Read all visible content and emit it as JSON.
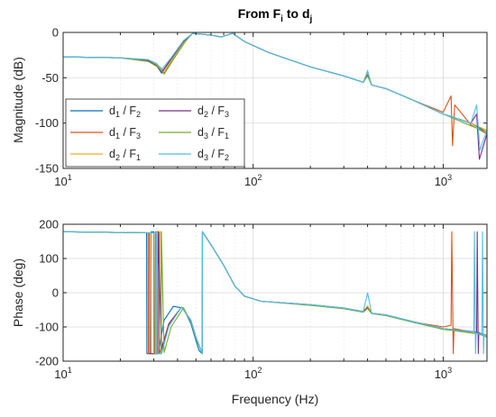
{
  "chart_data": [
    {
      "type": "line",
      "title_main": "From F",
      "title_sub1": "i",
      "title_mid": " to d",
      "title_sub2": "j",
      "ylabel": "Magnitude (dB)",
      "xscale": "log",
      "xlim": [
        10,
        1700
      ],
      "ylim": [
        -150,
        0
      ],
      "x_ticks": [
        10,
        100,
        1000
      ],
      "x_tick_labels": [
        {
          "base": "10",
          "exp": "1"
        },
        {
          "base": "10",
          "exp": "2"
        },
        {
          "base": "10",
          "exp": "3"
        }
      ],
      "y_ticks": [
        0,
        -50,
        -100,
        -150
      ],
      "y_tick_labels": [
        "0",
        "-50",
        "-100",
        "-150"
      ],
      "grid": true,
      "legend_placement": "lower-left",
      "legend": [
        {
          "num": "d",
          "num_sub": "1",
          "den": "F",
          "den_sub": "2",
          "color": "#0072BD"
        },
        {
          "num": "d",
          "num_sub": "2",
          "den": "F",
          "den_sub": "3",
          "color": "#7E2F8E"
        },
        {
          "num": "d",
          "num_sub": "1",
          "den": "F",
          "den_sub": "3",
          "color": "#D95319"
        },
        {
          "num": "d",
          "num_sub": "3",
          "den": "F",
          "den_sub": "1",
          "color": "#77AC30"
        },
        {
          "num": "d",
          "num_sub": "2",
          "den": "F",
          "den_sub": "1",
          "color": "#EDB120"
        },
        {
          "num": "d",
          "num_sub": "3",
          "den": "F",
          "den_sub": "2",
          "color": "#4DBEEE"
        }
      ],
      "series": [
        {
          "color": "#0072BD",
          "x": [
            10,
            20,
            28,
            31,
            33,
            37,
            43,
            48,
            60,
            68,
            78,
            90,
            120,
            200,
            300,
            380,
            400,
            420,
            500,
            700,
            1000,
            1400,
            1700
          ],
          "y": [
            -27,
            -28,
            -31,
            -36,
            -45,
            -30,
            -10,
            -1,
            -3,
            -5,
            -1,
            -10,
            -22,
            -38,
            -48,
            -55,
            -44,
            -58,
            -62,
            -75,
            -90,
            -100,
            -110
          ]
        },
        {
          "color": "#D95319",
          "x": [
            10,
            20,
            28,
            32,
            34,
            38,
            44,
            48,
            60,
            68,
            78,
            90,
            120,
            200,
            300,
            380,
            400,
            420,
            500,
            700,
            1000,
            1100,
            1120,
            1150,
            1400,
            1700
          ],
          "y": [
            -27,
            -28,
            -32,
            -38,
            -45,
            -29,
            -9,
            -1,
            -3,
            -5,
            -1,
            -10,
            -22,
            -38,
            -48,
            -55,
            -46,
            -58,
            -62,
            -75,
            -88,
            -70,
            -125,
            -80,
            -102,
            -112
          ]
        },
        {
          "color": "#EDB120",
          "x": [
            10,
            20,
            28,
            31,
            34,
            38,
            44,
            48,
            60,
            68,
            78,
            90,
            120,
            200,
            300,
            380,
            400,
            420,
            500,
            700,
            1000,
            1400,
            1700
          ],
          "y": [
            -27,
            -28,
            -30,
            -35,
            -42,
            -28,
            -9,
            -1,
            -3,
            -5,
            -1,
            -10,
            -22,
            -38,
            -48,
            -55,
            -45,
            -58,
            -62,
            -75,
            -90,
            -100,
            -108
          ]
        },
        {
          "color": "#7E2F8E",
          "x": [
            10,
            20,
            28,
            31,
            33,
            37,
            43,
            48,
            60,
            68,
            78,
            90,
            120,
            200,
            300,
            380,
            400,
            420,
            500,
            700,
            1000,
            1400,
            1500,
            1550,
            1700
          ],
          "y": [
            -27,
            -28,
            -31,
            -37,
            -44,
            -29,
            -10,
            -1,
            -3,
            -5,
            -1,
            -10,
            -22,
            -38,
            -48,
            -55,
            -47,
            -58,
            -62,
            -75,
            -90,
            -100,
            -90,
            -140,
            -112
          ]
        },
        {
          "color": "#77AC30",
          "x": [
            10,
            20,
            28,
            32,
            34,
            38,
            44,
            48,
            60,
            68,
            78,
            90,
            120,
            200,
            300,
            380,
            400,
            420,
            500,
            700,
            1000,
            1400,
            1700
          ],
          "y": [
            -27,
            -28,
            -32,
            -39,
            -46,
            -30,
            -10,
            -1,
            -3,
            -5,
            -1,
            -10,
            -22,
            -38,
            -48,
            -55,
            -48,
            -58,
            -62,
            -75,
            -90,
            -103,
            -110
          ]
        },
        {
          "color": "#4DBEEE",
          "x": [
            10,
            20,
            28,
            31,
            33,
            37,
            43,
            48,
            60,
            68,
            78,
            90,
            120,
            200,
            300,
            380,
            400,
            420,
            500,
            700,
            1000,
            1400,
            1500,
            1560,
            1700
          ],
          "y": [
            -27,
            -28,
            -30,
            -34,
            -41,
            -28,
            -9,
            -1,
            -3,
            -5,
            -1,
            -10,
            -22,
            -38,
            -48,
            -55,
            -42,
            -58,
            -62,
            -75,
            -90,
            -100,
            -80,
            -130,
            -108
          ]
        }
      ]
    },
    {
      "type": "line",
      "xlabel": "Frequency (Hz)",
      "ylabel": "Phase (deg)",
      "xscale": "log",
      "xlim": [
        10,
        1700
      ],
      "ylim": [
        -200,
        200
      ],
      "x_ticks": [
        10,
        100,
        1000
      ],
      "x_tick_labels": [
        {
          "base": "10",
          "exp": "1"
        },
        {
          "base": "10",
          "exp": "2"
        },
        {
          "base": "10",
          "exp": "3"
        }
      ],
      "y_ticks": [
        200,
        100,
        0,
        -100,
        -200
      ],
      "y_tick_labels": [
        "200",
        "100",
        "0",
        "-100",
        "-200"
      ],
      "grid": true,
      "series": [
        {
          "color": "#0072BD",
          "x": [
            10,
            20,
            27.5,
            27.6,
            29,
            29.1,
            30,
            30.1,
            32,
            32.1,
            34,
            38,
            43,
            47,
            50,
            52,
            54,
            54.1,
            60,
            70,
            80,
            90,
            110,
            200,
            300,
            380,
            400,
            420,
            500,
            700,
            1000,
            1500,
            1700
          ],
          "y": [
            178,
            176,
            175,
            -178,
            -178,
            178,
            178,
            -178,
            -178,
            -160,
            -80,
            -40,
            -45,
            -90,
            -140,
            -170,
            -178,
            178,
            140,
            80,
            20,
            -10,
            -25,
            -35,
            -45,
            -55,
            -40,
            -60,
            -65,
            -85,
            -105,
            -115,
            -125
          ]
        },
        {
          "color": "#D95319",
          "x": [
            10,
            20,
            28,
            28.1,
            30.5,
            30.6,
            32,
            32.1,
            33,
            36,
            42,
            47,
            50,
            54,
            54.1,
            60,
            70,
            80,
            90,
            110,
            200,
            300,
            380,
            400,
            420,
            500,
            700,
            1000,
            1100,
            1110,
            1130,
            1140,
            1500,
            1700
          ],
          "y": [
            178,
            176,
            175,
            -178,
            -178,
            178,
            178,
            -178,
            -160,
            -90,
            -42,
            -80,
            -130,
            -178,
            178,
            140,
            80,
            20,
            -10,
            -25,
            -36,
            -46,
            -56,
            -42,
            -60,
            -66,
            -86,
            -100,
            -95,
            178,
            -178,
            -105,
            -118,
            -128
          ]
        },
        {
          "color": "#EDB120",
          "x": [
            10,
            20,
            29,
            29.1,
            31,
            31.1,
            32.5,
            33,
            36,
            42,
            47,
            50,
            54,
            54.1,
            60,
            70,
            80,
            90,
            110,
            200,
            300,
            380,
            400,
            420,
            500,
            700,
            1000,
            1500,
            1700
          ],
          "y": [
            178,
            176,
            175,
            -178,
            -178,
            178,
            178,
            -170,
            -95,
            -42,
            -82,
            -132,
            -178,
            178,
            140,
            80,
            20,
            -10,
            -25,
            -35,
            -45,
            -55,
            -38,
            -60,
            -65,
            -85,
            -105,
            -118,
            -126
          ]
        },
        {
          "color": "#7E2F8E",
          "x": [
            10,
            20,
            28.5,
            28.6,
            31.5,
            31.6,
            33,
            36,
            42,
            47,
            50,
            54,
            54.1,
            60,
            70,
            80,
            90,
            110,
            200,
            300,
            380,
            400,
            420,
            500,
            700,
            1000,
            1500,
            1510,
            1530,
            1540,
            1700
          ],
          "y": [
            178,
            176,
            175,
            -178,
            -178,
            178,
            -165,
            -92,
            -42,
            -80,
            -130,
            -178,
            178,
            140,
            80,
            20,
            -10,
            -25,
            -35,
            -45,
            -55,
            -44,
            -60,
            -65,
            -85,
            -105,
            -115,
            178,
            -178,
            -120,
            -130
          ]
        },
        {
          "color": "#77AC30",
          "x": [
            10,
            20,
            30,
            30.1,
            32.8,
            32.9,
            34,
            37,
            43,
            47,
            50,
            54,
            54.1,
            60,
            70,
            80,
            90,
            110,
            200,
            300,
            380,
            400,
            420,
            500,
            700,
            1000,
            1500,
            1700
          ],
          "y": [
            178,
            176,
            175,
            -178,
            -178,
            178,
            -175,
            -100,
            -44,
            -84,
            -134,
            -178,
            178,
            140,
            80,
            20,
            -10,
            -25,
            -37,
            -47,
            -57,
            -46,
            -61,
            -67,
            -87,
            -107,
            -120,
            -128
          ]
        },
        {
          "color": "#4DBEEE",
          "x": [
            10,
            20,
            31,
            31.1,
            33,
            36,
            42,
            47,
            50,
            54,
            54.1,
            60,
            70,
            80,
            90,
            110,
            200,
            300,
            380,
            400,
            420,
            500,
            700,
            1000,
            1450,
            1460,
            1480,
            1490,
            1600,
            1610,
            1630,
            1640,
            1700
          ],
          "y": [
            178,
            176,
            175,
            -178,
            -178,
            -98,
            -42,
            -80,
            -130,
            -178,
            178,
            140,
            80,
            20,
            -10,
            -25,
            -35,
            -45,
            -55,
            0,
            -60,
            -65,
            -85,
            -105,
            -115,
            178,
            -178,
            -118,
            -122,
            178,
            -178,
            -125,
            -130
          ]
        }
      ]
    }
  ]
}
